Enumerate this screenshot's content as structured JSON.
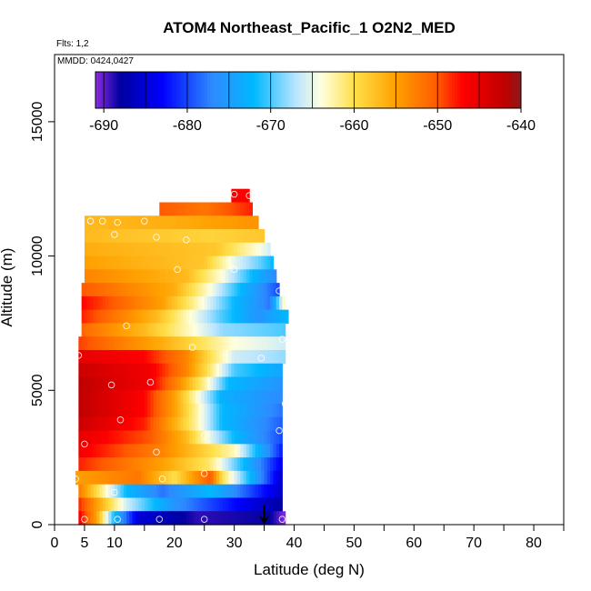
{
  "chart_data": {
    "type": "heatmap",
    "title": "ATOM4 Northeast_Pacific_1 O2N2_MED",
    "annotations": {
      "flights": "Flts: 1,2",
      "dates": "MMDD: 0424,0427"
    },
    "xlabel": "Latitude (deg N)",
    "ylabel": "Altitude (m)",
    "xlim": [
      0,
      85
    ],
    "ylim": [
      0,
      17500
    ],
    "xticks": [
      {
        "value": 0,
        "label": "0"
      },
      {
        "value": 5,
        "label": "5"
      },
      {
        "value": 10,
        "label": "10"
      },
      {
        "value": 20,
        "label": "20"
      },
      {
        "value": 30,
        "label": "30"
      },
      {
        "value": 40,
        "label": "40"
      },
      {
        "value": 50,
        "label": "50"
      },
      {
        "value": 60,
        "label": "60"
      },
      {
        "value": 70,
        "label": "70"
      },
      {
        "value": 80,
        "label": "80"
      }
    ],
    "yticks": [
      {
        "value": 0,
        "label": "0"
      },
      {
        "value": 5000,
        "label": "5000"
      },
      {
        "value": 10000,
        "label": "10000"
      },
      {
        "value": 15000,
        "label": "15000"
      }
    ],
    "colorbar": {
      "range": [
        -691,
        -640
      ],
      "ticks": [
        {
          "value": -690,
          "label": "-690"
        },
        {
          "value": -680,
          "label": "-680"
        },
        {
          "value": -670,
          "label": "-670"
        },
        {
          "value": -660,
          "label": "-660"
        },
        {
          "value": -650,
          "label": "-650"
        },
        {
          "value": -640,
          "label": "-640"
        }
      ],
      "stops": [
        {
          "value": -691,
          "color": "#8a2be2"
        },
        {
          "value": -688,
          "color": "#0000a0"
        },
        {
          "value": -683,
          "color": "#0000ff"
        },
        {
          "value": -677,
          "color": "#2e8bff"
        },
        {
          "value": -672,
          "color": "#00b8ff"
        },
        {
          "value": -667,
          "color": "#b8e4ff"
        },
        {
          "value": -664,
          "color": "#ffffe0"
        },
        {
          "value": -660,
          "color": "#ffe04a"
        },
        {
          "value": -655,
          "color": "#ffa000"
        },
        {
          "value": -650,
          "color": "#ff5a00"
        },
        {
          "value": -647,
          "color": "#ff0000"
        },
        {
          "value": -642,
          "color": "#c00000"
        },
        {
          "value": -640,
          "color": "#8b1a1a"
        }
      ]
    },
    "layers": [
      {
        "alt_min": 12000,
        "alt_max": 12500,
        "lat_start": 29.5,
        "lat_end": 32.5,
        "profile": [
          [
            29.5,
            -647
          ],
          [
            32.5,
            -647
          ]
        ]
      },
      {
        "alt_min": 11500,
        "alt_max": 12000,
        "lat_start": 17.5,
        "lat_end": 33.0,
        "profile": [
          [
            17.5,
            -650
          ],
          [
            25,
            -652
          ],
          [
            33,
            -648
          ]
        ]
      },
      {
        "alt_min": 11000,
        "alt_max": 11500,
        "lat_start": 5.0,
        "lat_end": 34.0,
        "profile": [
          [
            5,
            -657
          ],
          [
            20,
            -656
          ],
          [
            34,
            -654
          ]
        ]
      },
      {
        "alt_min": 10500,
        "alt_max": 11000,
        "lat_start": 5.0,
        "lat_end": 35.0,
        "profile": [
          [
            5,
            -657
          ],
          [
            26,
            -659
          ],
          [
            35,
            -658
          ]
        ]
      },
      {
        "alt_min": 10000,
        "alt_max": 10500,
        "lat_start": 5.0,
        "lat_end": 36.0,
        "profile": [
          [
            5,
            -656
          ],
          [
            27,
            -658
          ],
          [
            34,
            -664
          ],
          [
            36,
            -666
          ]
        ]
      },
      {
        "alt_min": 9500,
        "alt_max": 10000,
        "lat_start": 5.0,
        "lat_end": 36.5,
        "profile": [
          [
            5,
            -655
          ],
          [
            25,
            -658
          ],
          [
            30,
            -665
          ],
          [
            34,
            -669
          ],
          [
            36.5,
            -672
          ]
        ]
      },
      {
        "alt_min": 9000,
        "alt_max": 9500,
        "lat_start": 5.0,
        "lat_end": 37.0,
        "profile": [
          [
            5,
            -653
          ],
          [
            22,
            -657
          ],
          [
            28,
            -664
          ],
          [
            33,
            -672
          ],
          [
            37,
            -677
          ]
        ]
      },
      {
        "alt_min": 8500,
        "alt_max": 9000,
        "lat_start": 4.5,
        "lat_end": 37.5,
        "profile": [
          [
            4.5,
            -650
          ],
          [
            20,
            -656
          ],
          [
            26,
            -664
          ],
          [
            31,
            -672
          ],
          [
            37.5,
            -680
          ]
        ]
      },
      {
        "alt_min": 8000,
        "alt_max": 8500,
        "lat_start": 4.5,
        "lat_end": 38.5,
        "profile": [
          [
            4.5,
            -647
          ],
          [
            18,
            -655
          ],
          [
            24,
            -663
          ],
          [
            30,
            -672
          ],
          [
            36,
            -678
          ],
          [
            38.5,
            -662
          ]
        ]
      },
      {
        "alt_min": 7500,
        "alt_max": 8000,
        "lat_start": 4.5,
        "lat_end": 39.0,
        "profile": [
          [
            4.5,
            -648
          ],
          [
            17,
            -657
          ],
          [
            22,
            -663
          ],
          [
            28,
            -670
          ],
          [
            34,
            -676
          ],
          [
            39,
            -672
          ]
        ]
      },
      {
        "alt_min": 7000,
        "alt_max": 7500,
        "lat_start": 4.5,
        "lat_end": 38.5,
        "profile": [
          [
            4.5,
            -651
          ],
          [
            15,
            -657
          ],
          [
            21,
            -662
          ],
          [
            28,
            -668
          ],
          [
            38.5,
            -670
          ]
        ]
      },
      {
        "alt_min": 6500,
        "alt_max": 7000,
        "lat_start": 4.0,
        "lat_end": 38.5,
        "profile": [
          [
            4,
            -649
          ],
          [
            18,
            -656
          ],
          [
            24,
            -660
          ],
          [
            30,
            -664
          ],
          [
            38.5,
            -666
          ]
        ]
      },
      {
        "alt_min": 6000,
        "alt_max": 6500,
        "lat_start": 4.0,
        "lat_end": 38.5,
        "profile": [
          [
            4,
            -645
          ],
          [
            15,
            -647
          ],
          [
            22,
            -653
          ],
          [
            26,
            -660
          ],
          [
            30,
            -666
          ],
          [
            38.5,
            -668
          ]
        ]
      },
      {
        "alt_min": 5500,
        "alt_max": 6000,
        "lat_start": 4.0,
        "lat_end": 38.0,
        "profile": [
          [
            4,
            -643
          ],
          [
            16,
            -646
          ],
          [
            22,
            -653
          ],
          [
            26,
            -661
          ],
          [
            30,
            -670
          ],
          [
            38,
            -674
          ]
        ]
      },
      {
        "alt_min": 5000,
        "alt_max": 5500,
        "lat_start": 4.0,
        "lat_end": 38.0,
        "profile": [
          [
            4,
            -642
          ],
          [
            16,
            -646
          ],
          [
            21,
            -654
          ],
          [
            25,
            -662
          ],
          [
            29,
            -672
          ],
          [
            38,
            -676
          ]
        ]
      },
      {
        "alt_min": 4500,
        "alt_max": 5000,
        "lat_start": 4.0,
        "lat_end": 38.0,
        "profile": [
          [
            4,
            -642
          ],
          [
            15,
            -647
          ],
          [
            20,
            -655
          ],
          [
            24,
            -664
          ],
          [
            28,
            -673
          ],
          [
            38,
            -677
          ]
        ]
      },
      {
        "alt_min": 4000,
        "alt_max": 4500,
        "lat_start": 4.0,
        "lat_end": 38.0,
        "profile": [
          [
            4,
            -642
          ],
          [
            15,
            -647
          ],
          [
            20,
            -655
          ],
          [
            24,
            -663
          ],
          [
            28,
            -672
          ],
          [
            38,
            -678
          ]
        ]
      },
      {
        "alt_min": 3500,
        "alt_max": 4000,
        "lat_start": 4.0,
        "lat_end": 38.0,
        "profile": [
          [
            4,
            -643
          ],
          [
            15,
            -648
          ],
          [
            20,
            -656
          ],
          [
            24,
            -663
          ],
          [
            28,
            -672
          ],
          [
            38,
            -679
          ]
        ]
      },
      {
        "alt_min": 3000,
        "alt_max": 3500,
        "lat_start": 4.0,
        "lat_end": 38.0,
        "profile": [
          [
            4,
            -645
          ],
          [
            16,
            -650
          ],
          [
            22,
            -657
          ],
          [
            26,
            -665
          ],
          [
            30,
            -672
          ],
          [
            38,
            -680
          ]
        ]
      },
      {
        "alt_min": 2500,
        "alt_max": 3000,
        "lat_start": 4.0,
        "lat_end": 38.0,
        "profile": [
          [
            4,
            -646
          ],
          [
            18,
            -653
          ],
          [
            24,
            -658
          ],
          [
            30,
            -663
          ],
          [
            38,
            -682
          ]
        ]
      },
      {
        "alt_min": 2000,
        "alt_max": 2500,
        "lat_start": 4.0,
        "lat_end": 38.0,
        "profile": [
          [
            4,
            -648
          ],
          [
            18,
            -655
          ],
          [
            26,
            -661
          ],
          [
            29,
            -667
          ],
          [
            38,
            -684
          ]
        ]
      },
      {
        "alt_min": 1500,
        "alt_max": 2000,
        "lat_start": 3.5,
        "lat_end": 38.0,
        "profile": [
          [
            3.5,
            -655
          ],
          [
            14,
            -652
          ],
          [
            20,
            -660
          ],
          [
            26,
            -650
          ],
          [
            28,
            -660
          ],
          [
            38,
            -686
          ]
        ]
      },
      {
        "alt_min": 1000,
        "alt_max": 1500,
        "lat_start": 4.0,
        "lat_end": 38.0,
        "profile": [
          [
            4,
            -652
          ],
          [
            8,
            -662
          ],
          [
            12,
            -672
          ],
          [
            18,
            -678
          ],
          [
            26,
            -672
          ],
          [
            38,
            -686
          ]
        ]
      },
      {
        "alt_min": 500,
        "alt_max": 1000,
        "lat_start": 4.0,
        "lat_end": 38.0,
        "profile": [
          [
            4,
            -648
          ],
          [
            8,
            -657
          ],
          [
            12,
            -666
          ],
          [
            20,
            -676
          ],
          [
            38,
            -688
          ]
        ]
      },
      {
        "alt_min": 0,
        "alt_max": 500,
        "lat_start": 4.0,
        "lat_end": 38.5,
        "profile": [
          [
            4,
            -646
          ],
          [
            7,
            -655
          ],
          [
            10,
            -672
          ],
          [
            14,
            -685
          ],
          [
            24,
            -689
          ],
          [
            36,
            -688
          ],
          [
            38.5,
            -691
          ]
        ]
      }
    ],
    "samples": [
      [
        30,
        12300
      ],
      [
        32.5,
        12250
      ],
      [
        6,
        11300
      ],
      [
        8,
        11300
      ],
      [
        10.5,
        11250
      ],
      [
        15,
        11300
      ],
      [
        10,
        10800
      ],
      [
        17,
        10700
      ],
      [
        22,
        10600
      ],
      [
        20.5,
        9500
      ],
      [
        30,
        9500
      ],
      [
        37.5,
        8700
      ],
      [
        39,
        8300
      ],
      [
        12,
        7400
      ],
      [
        38,
        6900
      ],
      [
        23,
        6600
      ],
      [
        4,
        6300
      ],
      [
        34.5,
        6200
      ],
      [
        9.5,
        5200
      ],
      [
        16,
        5300
      ],
      [
        38.5,
        4500
      ],
      [
        11,
        3900
      ],
      [
        25,
        3300
      ],
      [
        37.5,
        3500
      ],
      [
        5,
        3000
      ],
      [
        17,
        2700
      ],
      [
        3.5,
        1700
      ],
      [
        18,
        1700
      ],
      [
        25,
        1900
      ],
      [
        10,
        1200
      ],
      [
        5,
        200
      ],
      [
        10.5,
        200
      ],
      [
        17.5,
        200
      ],
      [
        25,
        200
      ],
      [
        38,
        200
      ]
    ],
    "marker": {
      "lat": 35,
      "alt": 0
    }
  }
}
